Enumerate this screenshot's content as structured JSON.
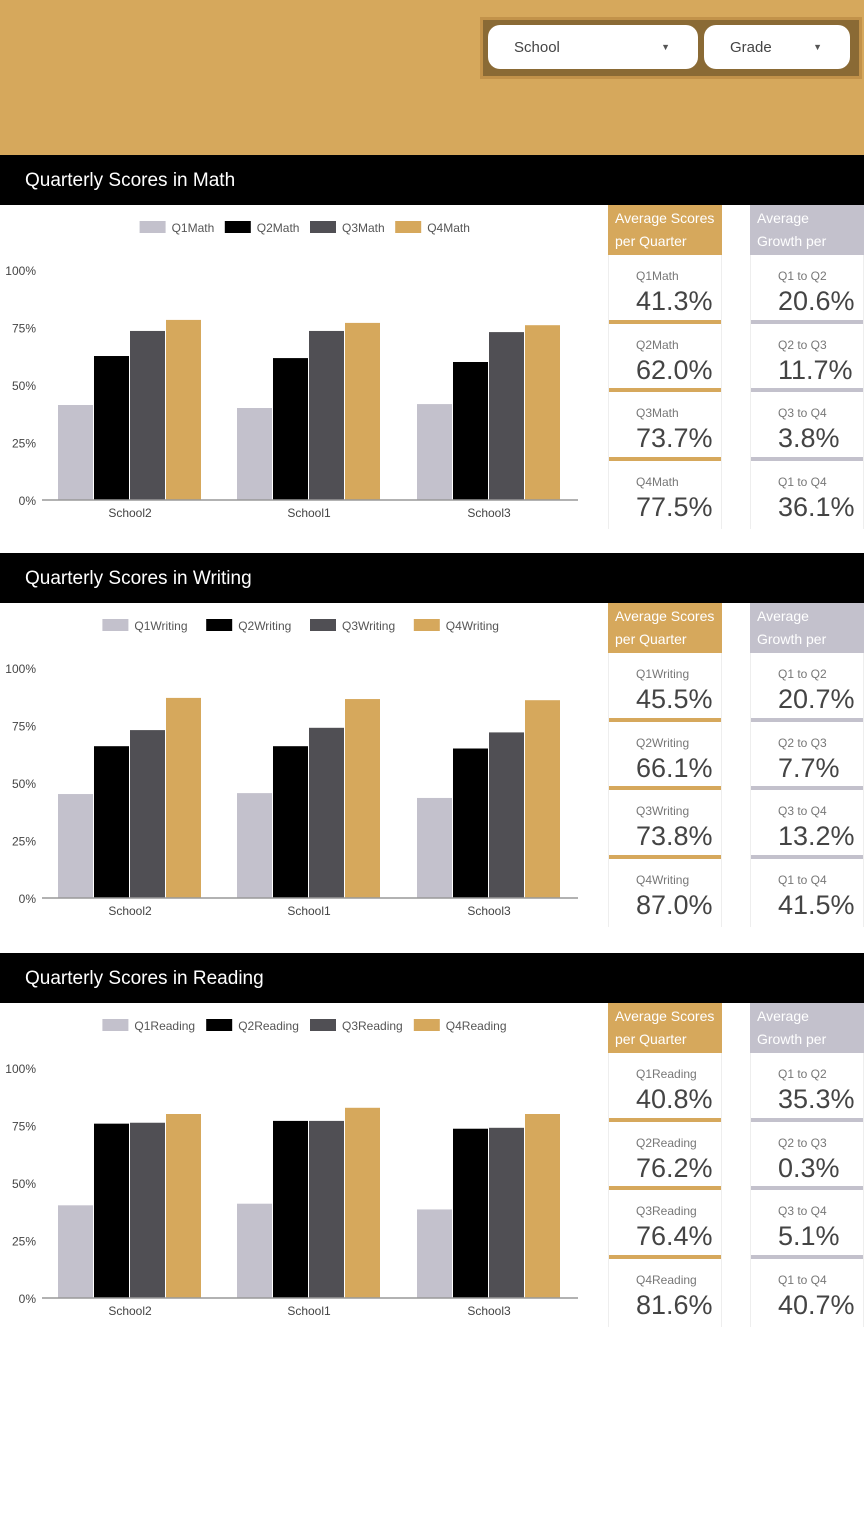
{
  "filters": {
    "school": "School",
    "grade": "Grade"
  },
  "colors": {
    "q1": "#c3c1cc",
    "q2": "#000000",
    "q3": "#504f54",
    "q4": "#d6a85c",
    "header": "#d6a85c",
    "growth": "#c3c1cc"
  },
  "cards_header": {
    "scores": "Average Scores per Quarter",
    "growth": "Average Growth per Quarter"
  },
  "sections": [
    {
      "title": "Quarterly Scores in Math",
      "scores": [
        {
          "label": "Q1Math",
          "value": "41.3%"
        },
        {
          "label": "Q2Math",
          "value": "62.0%"
        },
        {
          "label": "Q3Math",
          "value": "73.7%"
        },
        {
          "label": "Q4Math",
          "value": "77.5%"
        }
      ],
      "growth": [
        {
          "label": "Q1 to Q2",
          "value": "20.6%"
        },
        {
          "label": "Q2 to Q3",
          "value": "11.7%"
        },
        {
          "label": "Q3 to Q4",
          "value": "3.8%"
        },
        {
          "label": "Q1 to Q4",
          "value": "36.1%"
        }
      ]
    },
    {
      "title": "Quarterly Scores in Writing",
      "scores": [
        {
          "label": "Q1Writing",
          "value": "45.5%"
        },
        {
          "label": "Q2Writing",
          "value": "66.1%"
        },
        {
          "label": "Q3Writing",
          "value": "73.8%"
        },
        {
          "label": "Q4Writing",
          "value": "87.0%"
        }
      ],
      "growth": [
        {
          "label": "Q1 to Q2",
          "value": "20.7%"
        },
        {
          "label": "Q2 to Q3",
          "value": "7.7%"
        },
        {
          "label": "Q3 to Q4",
          "value": "13.2%"
        },
        {
          "label": "Q1 to Q4",
          "value": "41.5%"
        }
      ]
    },
    {
      "title": "Quarterly Scores in Reading",
      "scores": [
        {
          "label": "Q1Reading",
          "value": "40.8%"
        },
        {
          "label": "Q2Reading",
          "value": "76.2%"
        },
        {
          "label": "Q3Reading",
          "value": "76.4%"
        },
        {
          "label": "Q4Reading",
          "value": "81.6%"
        }
      ],
      "growth": [
        {
          "label": "Q1 to Q2",
          "value": "35.3%"
        },
        {
          "label": "Q2 to Q3",
          "value": "0.3%"
        },
        {
          "label": "Q3 to Q4",
          "value": "5.1%"
        },
        {
          "label": "Q1 to Q4",
          "value": "40.7%"
        }
      ]
    }
  ],
  "chart_data": [
    {
      "type": "bar",
      "categories": [
        "School2",
        "School1",
        "School3"
      ],
      "yticks": [
        "0%",
        "25%",
        "50%",
        "75%",
        "100%"
      ],
      "ylim": [
        0,
        100
      ],
      "grid": false,
      "legend": "top",
      "series": [
        {
          "name": "Q1Math",
          "values": [
            41.3,
            40,
            41.7
          ]
        },
        {
          "name": "Q2Math",
          "values": [
            62.6,
            61.7,
            60
          ]
        },
        {
          "name": "Q3Math",
          "values": [
            73.5,
            73.5,
            73
          ]
        },
        {
          "name": "Q4Math",
          "values": [
            78.3,
            77,
            76
          ]
        }
      ]
    },
    {
      "type": "bar",
      "categories": [
        "School2",
        "School1",
        "School3"
      ],
      "yticks": [
        "0%",
        "25%",
        "50%",
        "75%",
        "100%"
      ],
      "ylim": [
        0,
        100
      ],
      "grid": false,
      "legend": "top",
      "series": [
        {
          "name": "Q1Writing",
          "values": [
            45.2,
            45.6,
            43.5
          ]
        },
        {
          "name": "Q2Writing",
          "values": [
            66,
            66,
            65
          ]
        },
        {
          "name": "Q3Writing",
          "values": [
            73,
            74,
            72
          ]
        },
        {
          "name": "Q4Writing",
          "values": [
            87,
            86.5,
            86
          ]
        }
      ]
    },
    {
      "type": "bar",
      "categories": [
        "School2",
        "School1",
        "School3"
      ],
      "yticks": [
        "0%",
        "25%",
        "50%",
        "75%",
        "100%"
      ],
      "ylim": [
        0,
        100
      ],
      "grid": false,
      "legend": "top",
      "series": [
        {
          "name": "Q1Reading",
          "values": [
            40.3,
            41,
            38.5
          ]
        },
        {
          "name": "Q2Reading",
          "values": [
            75.8,
            77,
            73.6
          ]
        },
        {
          "name": "Q3Reading",
          "values": [
            76.2,
            77,
            74
          ]
        },
        {
          "name": "Q4Reading",
          "values": [
            80,
            82.7,
            80
          ]
        }
      ]
    }
  ]
}
